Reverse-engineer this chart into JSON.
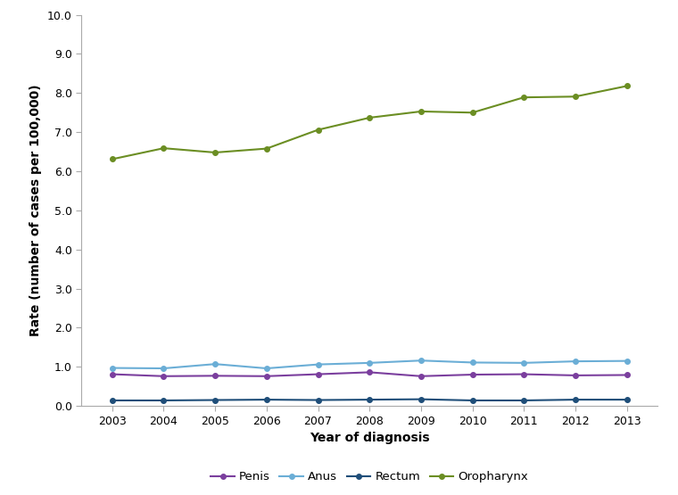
{
  "years": [
    2003,
    2004,
    2005,
    2006,
    2007,
    2008,
    2009,
    2010,
    2011,
    2012,
    2013
  ],
  "penis": [
    0.81,
    0.76,
    0.77,
    0.76,
    0.81,
    0.86,
    0.76,
    0.8,
    0.81,
    0.78,
    0.79
  ],
  "anus": [
    0.97,
    0.96,
    1.07,
    0.96,
    1.06,
    1.1,
    1.16,
    1.11,
    1.1,
    1.14,
    1.15
  ],
  "rectum": [
    0.14,
    0.14,
    0.15,
    0.16,
    0.15,
    0.16,
    0.17,
    0.14,
    0.14,
    0.16,
    0.16
  ],
  "oropharynx": [
    6.31,
    6.59,
    6.48,
    6.58,
    7.06,
    7.37,
    7.53,
    7.5,
    7.89,
    7.91,
    8.18
  ],
  "color_penis": "#7B3F9E",
  "color_anus": "#6BAED6",
  "color_rectum": "#1F4E79",
  "color_oropharynx": "#6B8E23",
  "marker": "o",
  "markersize": 4,
  "linewidth": 1.5,
  "xlabel": "Year of diagnosis",
  "ylabel": "Rate (number of cases per 100,000)",
  "ylim": [
    0.0,
    10.0
  ],
  "yticks": [
    0.0,
    1.0,
    2.0,
    3.0,
    4.0,
    5.0,
    6.0,
    7.0,
    8.0,
    9.0,
    10.0
  ],
  "legend_labels": [
    "Penis",
    "Anus",
    "Rectum",
    "Oropharynx"
  ],
  "background_color": "#ffffff",
  "spine_color": "#aaaaaa",
  "tick_label_fontsize": 9,
  "axis_label_fontsize": 10,
  "legend_fontsize": 9.5
}
